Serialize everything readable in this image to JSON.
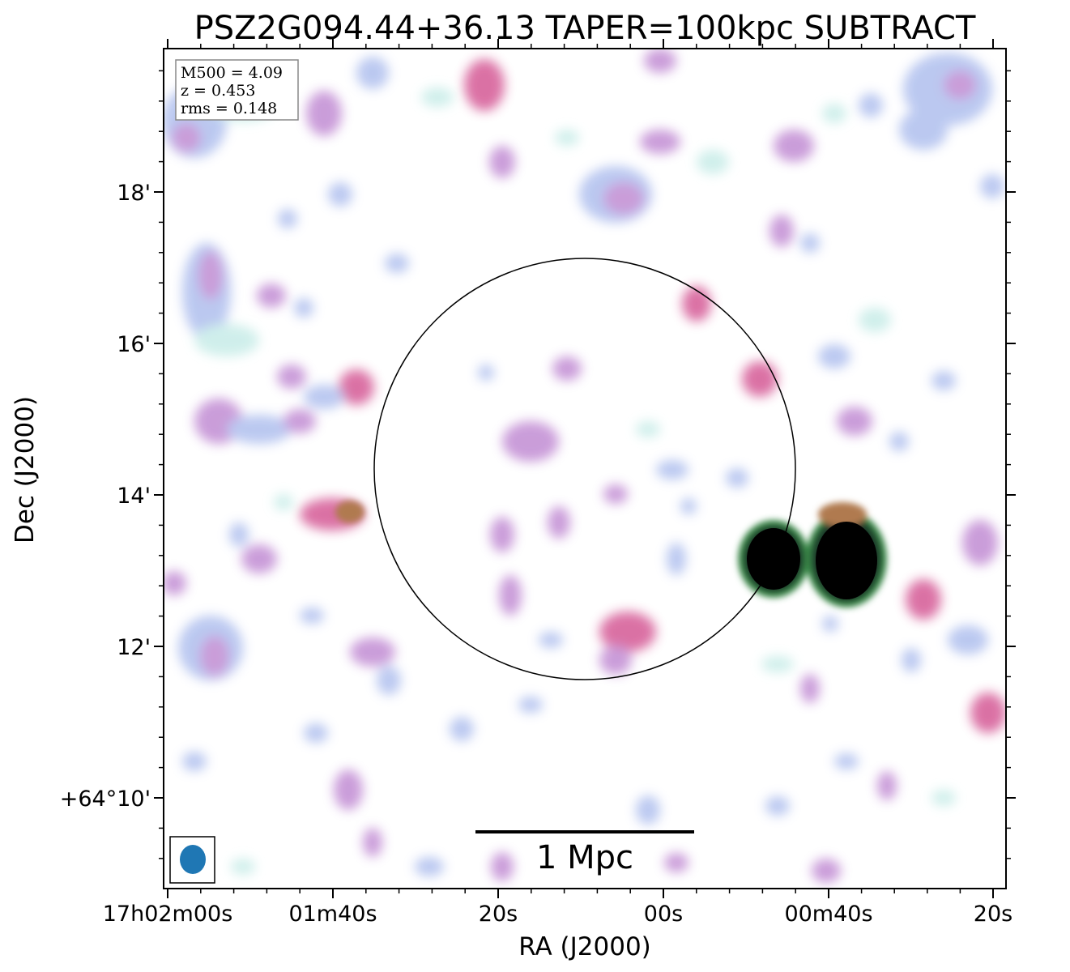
{
  "chart_data": {
    "type": "heatmap",
    "title": "PSZ2G094.44+36.13 TAPER=100kpc SUBTRACT",
    "xlabel": "RA (J2000)",
    "ylabel": "Dec (J2000)",
    "x_tick_labels": [
      "17h02m00s",
      "01m40s",
      "20s",
      "00s",
      "00m40s",
      "20s"
    ],
    "y_tick_labels": [
      "18'",
      "16'",
      "14'",
      "12'",
      "+64°10'"
    ],
    "info_box": {
      "m500": "M500 = 4.09",
      "z": "z = 0.453",
      "rms": "rms = 0.148"
    },
    "scale_bar_label": "1 Mpc",
    "colormap": [
      "#ffffff",
      "#cdeeea",
      "#b8c6f0",
      "#c898d8",
      "#d96aa0",
      "#b07a50",
      "#3a8a4a",
      "#000000"
    ],
    "beam_color": "#1f77b4"
  }
}
